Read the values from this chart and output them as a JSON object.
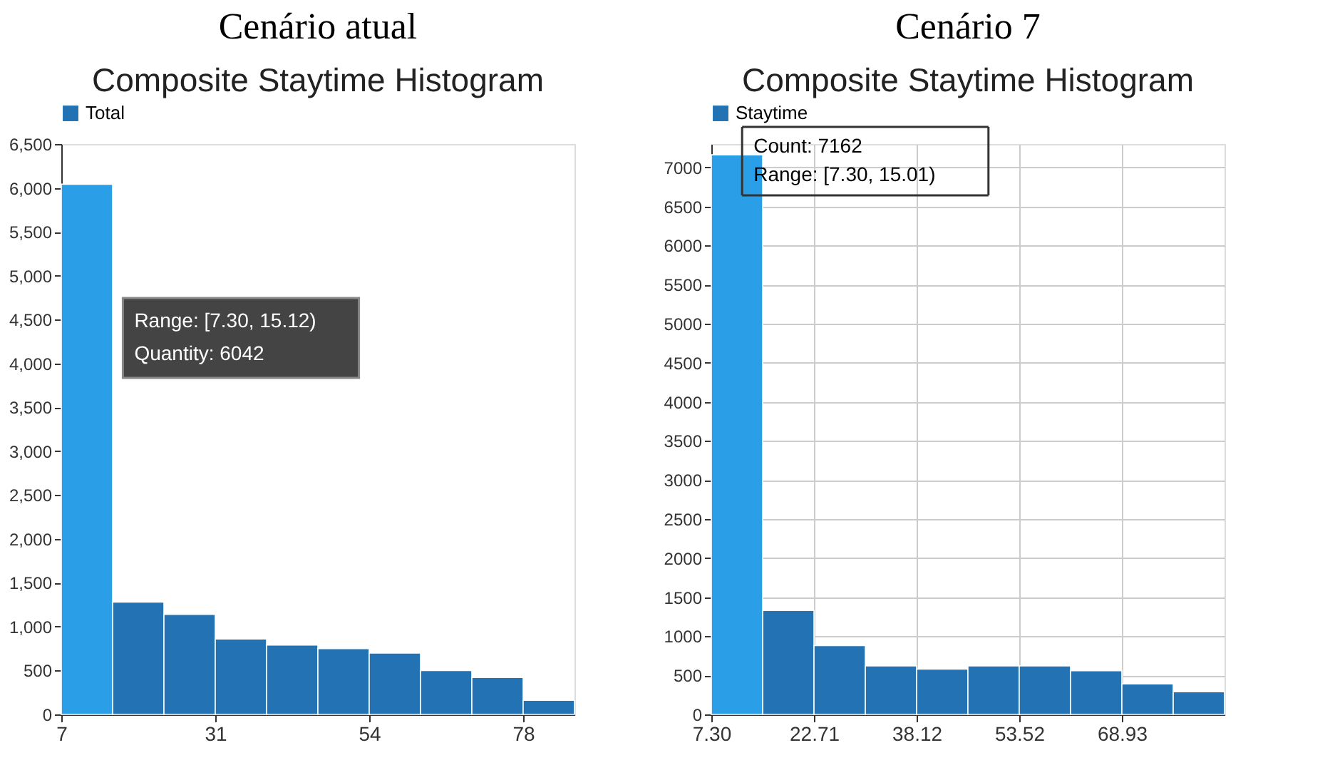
{
  "chart_data": [
    {
      "type": "histogram",
      "title": "Cenário atual",
      "subtitle": "Composite Staytime Histogram",
      "bins": [
        7.3,
        15.12,
        22.94,
        30.76,
        38.58,
        46.4,
        54.22,
        62.04,
        69.86,
        77.68,
        85.5
      ],
      "series": [
        {
          "name": "Total",
          "color": "#2272b4",
          "colors": [
            "#2b9ee8",
            "#2272b4",
            "#2272b4",
            "#2272b4",
            "#2272b4",
            "#2272b4",
            "#2272b4",
            "#2272b4",
            "#2272b4",
            "#2272b4"
          ],
          "values": [
            6042,
            1280,
            1140,
            860,
            790,
            750,
            700,
            500,
            420,
            160
          ]
        }
      ],
      "xlim": [
        7.3,
        85.5
      ],
      "xticks": [
        {
          "value": 7.3,
          "label": "7"
        },
        {
          "value": 30.76,
          "label": "31"
        },
        {
          "value": 54.22,
          "label": "54"
        },
        {
          "value": 77.68,
          "label": "78"
        }
      ],
      "ylim": [
        0,
        6500
      ],
      "yticks": [
        0,
        500,
        {
          "value": 1000,
          "label": "1,000"
        },
        {
          "value": 1500,
          "label": "1,500"
        },
        {
          "value": 2000,
          "label": "2,000"
        },
        {
          "value": 2500,
          "label": "2,500"
        },
        {
          "value": 3000,
          "label": "3,000"
        },
        {
          "value": 3500,
          "label": "3,500"
        },
        {
          "value": 4000,
          "label": "4,000"
        },
        {
          "value": 4500,
          "label": "4,500"
        },
        {
          "value": 5000,
          "label": "5,000"
        },
        {
          "value": 5500,
          "label": "5,500"
        },
        {
          "value": 6000,
          "label": "6,000"
        },
        {
          "value": 6500,
          "label": "6,500"
        }
      ],
      "grid": false,
      "legend": "top left",
      "annotations": [
        "Range: [7.30, 15.12)",
        "Quantity: 6042"
      ]
    },
    {
      "type": "histogram",
      "title": "Cenário 7",
      "subtitle": "Composite Staytime Histogram",
      "bins": [
        7.3,
        15.01,
        22.71,
        30.42,
        38.12,
        45.82,
        53.52,
        61.23,
        68.93,
        76.64,
        84.34
      ],
      "series": [
        {
          "name": "Staytime",
          "color": "#2272b4",
          "colors": [
            "#2b9ee8",
            "#2272b4",
            "#2272b4",
            "#2272b4",
            "#2272b4",
            "#2272b4",
            "#2272b4",
            "#2272b4",
            "#2272b4",
            "#2272b4"
          ],
          "values": [
            7162,
            1330,
            880,
            620,
            580,
            620,
            620,
            560,
            390,
            290
          ]
        }
      ],
      "xlim": [
        7.3,
        84.34
      ],
      "xticks": [
        {
          "value": 7.3,
          "label": "7.30"
        },
        {
          "value": 22.71,
          "label": "22.71"
        },
        {
          "value": 38.12,
          "label": "38.12"
        },
        {
          "value": 53.52,
          "label": "53.52"
        },
        {
          "value": 68.93,
          "label": "68.93"
        }
      ],
      "ylim": [
        0,
        7300
      ],
      "yticks": [
        0,
        500,
        1000,
        1500,
        2000,
        2500,
        3000,
        3500,
        4000,
        4500,
        5000,
        5500,
        6000,
        6500,
        7000
      ],
      "grid": true,
      "legend": "top left",
      "annotations": [
        "Count: 7162",
        "Range: [7.30, 15.01)"
      ]
    }
  ]
}
